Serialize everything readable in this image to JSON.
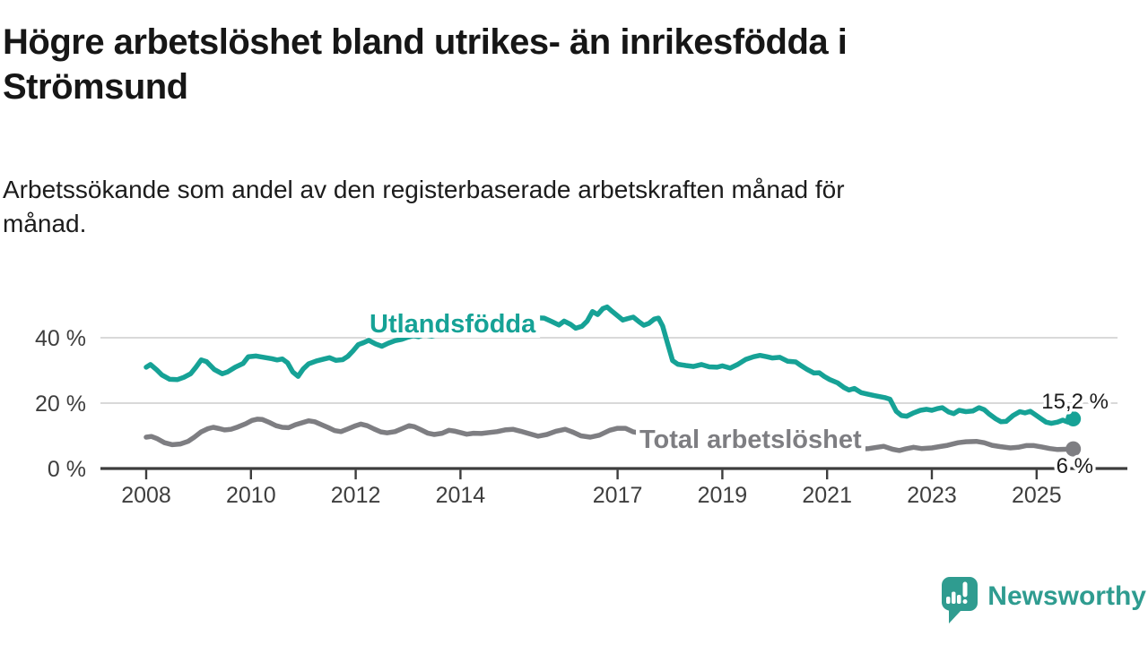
{
  "header": {
    "title": "Högre arbetslöshet bland utrikes- än inrikesfödda i\nStrömsund",
    "subtitle": "Arbetssökande som andel av den registerbaserade arbetskraften månad för\nmånad."
  },
  "footer": {
    "brand": "Newsworthy",
    "brand_color": "#2F9C90",
    "logo_icon": "newsworthy-speech-bubble-bar-chart-icon"
  },
  "colors": {
    "accent_teal": "#16A296",
    "series_gray": "#7E7E82",
    "gridline": "#D9D9D9",
    "axis": "#3D3D3D",
    "tick_text": "#3E3E3E",
    "value_text": "#1C1C1C",
    "background": "#FFFFFF"
  },
  "chart_data": {
    "type": "line",
    "title": "",
    "xlabel": "",
    "ylabel": "",
    "unit": "%",
    "ylim": [
      0,
      50
    ],
    "x_range": [
      2008,
      2025.7
    ],
    "grid": "horizontal",
    "legend_position": "inline-labels",
    "yticks": [
      {
        "value": 40,
        "label": "40 %"
      },
      {
        "value": 20,
        "label": "20 %"
      },
      {
        "value": 0,
        "label": "0 %"
      }
    ],
    "xticks": [
      {
        "year": 2008,
        "label": "2008"
      },
      {
        "year": 2010,
        "label": "2010"
      },
      {
        "year": 2012,
        "label": "2012"
      },
      {
        "year": 2014,
        "label": "2014"
      },
      {
        "year": 2017,
        "label": "2017"
      },
      {
        "year": 2019,
        "label": "2019"
      },
      {
        "year": 2021,
        "label": "2021"
      },
      {
        "year": 2023,
        "label": "2023"
      },
      {
        "year": 2025,
        "label": "2025"
      }
    ],
    "series": [
      {
        "name": "Utlandsfödda",
        "color": "#16A296",
        "end_value": 15.2,
        "end_label": "15,2 %",
        "points": [
          [
            2008.0,
            31.0
          ],
          [
            2008.08,
            31.8
          ],
          [
            2008.2,
            30.2
          ],
          [
            2008.3,
            28.6
          ],
          [
            2008.45,
            27.3
          ],
          [
            2008.6,
            27.2
          ],
          [
            2008.72,
            27.9
          ],
          [
            2008.85,
            29.0
          ],
          [
            2008.95,
            31.0
          ],
          [
            2009.05,
            33.2
          ],
          [
            2009.15,
            32.7
          ],
          [
            2009.3,
            30.3
          ],
          [
            2009.45,
            29.0
          ],
          [
            2009.55,
            29.5
          ],
          [
            2009.7,
            31.0
          ],
          [
            2009.85,
            32.1
          ],
          [
            2009.95,
            34.2
          ],
          [
            2010.1,
            34.4
          ],
          [
            2010.25,
            34.0
          ],
          [
            2010.4,
            33.6
          ],
          [
            2010.5,
            33.2
          ],
          [
            2010.6,
            33.5
          ],
          [
            2010.7,
            32.3
          ],
          [
            2010.8,
            29.5
          ],
          [
            2010.9,
            28.2
          ],
          [
            2011.0,
            30.5
          ],
          [
            2011.1,
            32.0
          ],
          [
            2011.25,
            32.9
          ],
          [
            2011.4,
            33.5
          ],
          [
            2011.5,
            33.9
          ],
          [
            2011.62,
            33.1
          ],
          [
            2011.75,
            33.3
          ],
          [
            2011.85,
            34.3
          ],
          [
            2011.95,
            36.0
          ],
          [
            2012.05,
            37.9
          ],
          [
            2012.15,
            38.5
          ],
          [
            2012.25,
            39.2
          ],
          [
            2012.38,
            38.1
          ],
          [
            2012.5,
            37.4
          ],
          [
            2012.62,
            38.3
          ],
          [
            2012.75,
            39.1
          ],
          [
            2012.88,
            39.5
          ],
          [
            2013.0,
            40.2
          ],
          [
            2013.1,
            40.6
          ],
          [
            2013.2,
            40.3
          ],
          [
            2013.3,
            40.9
          ],
          [
            2013.45,
            40.5
          ],
          [
            2013.6,
            41.1
          ],
          [
            2013.75,
            40.8
          ],
          [
            2013.9,
            41.2
          ],
          [
            2014.05,
            41.4
          ],
          [
            2014.2,
            41.1
          ],
          [
            2014.35,
            41.3
          ],
          [
            2014.5,
            41.7
          ],
          [
            2014.7,
            42.3
          ],
          [
            2014.9,
            43.1
          ],
          [
            2015.1,
            44.1
          ],
          [
            2015.3,
            45.3
          ],
          [
            2015.45,
            46.1
          ],
          [
            2015.6,
            46.0
          ],
          [
            2015.75,
            44.9
          ],
          [
            2015.88,
            43.9
          ],
          [
            2015.98,
            45.1
          ],
          [
            2016.1,
            44.1
          ],
          [
            2016.2,
            42.9
          ],
          [
            2016.32,
            43.5
          ],
          [
            2016.42,
            45.1
          ],
          [
            2016.52,
            48.0
          ],
          [
            2016.62,
            47.1
          ],
          [
            2016.72,
            48.9
          ],
          [
            2016.8,
            49.4
          ],
          [
            2016.9,
            48.0
          ],
          [
            2017.0,
            46.7
          ],
          [
            2017.1,
            45.4
          ],
          [
            2017.2,
            45.9
          ],
          [
            2017.3,
            46.3
          ],
          [
            2017.4,
            45.0
          ],
          [
            2017.5,
            43.8
          ],
          [
            2017.6,
            44.4
          ],
          [
            2017.7,
            45.7
          ],
          [
            2017.78,
            46.0
          ],
          [
            2017.86,
            43.6
          ],
          [
            2017.95,
            38.5
          ],
          [
            2018.05,
            33.0
          ],
          [
            2018.15,
            31.9
          ],
          [
            2018.3,
            31.5
          ],
          [
            2018.45,
            31.2
          ],
          [
            2018.6,
            31.8
          ],
          [
            2018.75,
            31.1
          ],
          [
            2018.9,
            31.0
          ],
          [
            2019.0,
            31.4
          ],
          [
            2019.15,
            30.7
          ],
          [
            2019.3,
            31.9
          ],
          [
            2019.45,
            33.4
          ],
          [
            2019.6,
            34.2
          ],
          [
            2019.72,
            34.6
          ],
          [
            2019.85,
            34.2
          ],
          [
            2019.95,
            33.8
          ],
          [
            2020.1,
            34.0
          ],
          [
            2020.25,
            32.8
          ],
          [
            2020.4,
            32.6
          ],
          [
            2020.5,
            31.5
          ],
          [
            2020.62,
            30.3
          ],
          [
            2020.75,
            29.2
          ],
          [
            2020.85,
            29.3
          ],
          [
            2020.95,
            28.1
          ],
          [
            2021.05,
            27.2
          ],
          [
            2021.2,
            26.2
          ],
          [
            2021.32,
            24.8
          ],
          [
            2021.42,
            24.0
          ],
          [
            2021.52,
            24.5
          ],
          [
            2021.65,
            23.2
          ],
          [
            2021.78,
            22.7
          ],
          [
            2021.9,
            22.3
          ],
          [
            2022.0,
            22.0
          ],
          [
            2022.1,
            21.7
          ],
          [
            2022.2,
            21.2
          ],
          [
            2022.32,
            17.5
          ],
          [
            2022.42,
            16.2
          ],
          [
            2022.52,
            16.0
          ],
          [
            2022.65,
            17.0
          ],
          [
            2022.78,
            17.8
          ],
          [
            2022.9,
            18.1
          ],
          [
            2023.0,
            17.8
          ],
          [
            2023.1,
            18.3
          ],
          [
            2023.2,
            18.6
          ],
          [
            2023.32,
            17.3
          ],
          [
            2023.42,
            16.8
          ],
          [
            2023.52,
            17.8
          ],
          [
            2023.65,
            17.4
          ],
          [
            2023.78,
            17.6
          ],
          [
            2023.9,
            18.6
          ],
          [
            2024.0,
            18.0
          ],
          [
            2024.1,
            16.6
          ],
          [
            2024.22,
            15.2
          ],
          [
            2024.32,
            14.3
          ],
          [
            2024.42,
            14.4
          ],
          [
            2024.55,
            16.2
          ],
          [
            2024.68,
            17.4
          ],
          [
            2024.78,
            17.0
          ],
          [
            2024.88,
            17.5
          ],
          [
            2024.98,
            16.4
          ],
          [
            2025.08,
            15.3
          ],
          [
            2025.18,
            14.2
          ],
          [
            2025.28,
            13.8
          ],
          [
            2025.4,
            14.2
          ],
          [
            2025.5,
            14.8
          ],
          [
            2025.6,
            14.2
          ],
          [
            2025.7,
            15.2
          ]
        ]
      },
      {
        "name": "Total arbetslöshet",
        "color": "#7E7E82",
        "end_value": 6.0,
        "end_label": "6 %",
        "points": [
          [
            2008.0,
            9.6
          ],
          [
            2008.1,
            9.8
          ],
          [
            2008.2,
            9.2
          ],
          [
            2008.35,
            7.9
          ],
          [
            2008.5,
            7.3
          ],
          [
            2008.65,
            7.5
          ],
          [
            2008.8,
            8.3
          ],
          [
            2008.92,
            9.6
          ],
          [
            2009.05,
            11.2
          ],
          [
            2009.18,
            12.2
          ],
          [
            2009.28,
            12.6
          ],
          [
            2009.4,
            12.2
          ],
          [
            2009.5,
            11.8
          ],
          [
            2009.62,
            12.0
          ],
          [
            2009.75,
            12.7
          ],
          [
            2009.9,
            13.7
          ],
          [
            2010.02,
            14.7
          ],
          [
            2010.12,
            15.1
          ],
          [
            2010.22,
            15.0
          ],
          [
            2010.35,
            14.1
          ],
          [
            2010.48,
            13.1
          ],
          [
            2010.6,
            12.6
          ],
          [
            2010.72,
            12.5
          ],
          [
            2010.85,
            13.4
          ],
          [
            2011.0,
            14.1
          ],
          [
            2011.1,
            14.6
          ],
          [
            2011.22,
            14.3
          ],
          [
            2011.35,
            13.4
          ],
          [
            2011.48,
            12.5
          ],
          [
            2011.6,
            11.6
          ],
          [
            2011.72,
            11.3
          ],
          [
            2011.85,
            12.1
          ],
          [
            2012.0,
            13.1
          ],
          [
            2012.1,
            13.6
          ],
          [
            2012.22,
            13.1
          ],
          [
            2012.35,
            12.1
          ],
          [
            2012.48,
            11.2
          ],
          [
            2012.6,
            10.9
          ],
          [
            2012.75,
            11.3
          ],
          [
            2012.9,
            12.3
          ],
          [
            2013.02,
            13.1
          ],
          [
            2013.12,
            12.8
          ],
          [
            2013.25,
            11.8
          ],
          [
            2013.38,
            10.8
          ],
          [
            2013.5,
            10.4
          ],
          [
            2013.65,
            10.8
          ],
          [
            2013.78,
            11.7
          ],
          [
            2013.9,
            11.4
          ],
          [
            2014.02,
            10.9
          ],
          [
            2014.12,
            10.5
          ],
          [
            2014.25,
            10.8
          ],
          [
            2014.4,
            10.7
          ],
          [
            2014.55,
            11.0
          ],
          [
            2014.7,
            11.3
          ],
          [
            2014.85,
            11.8
          ],
          [
            2015.0,
            12.0
          ],
          [
            2015.15,
            11.4
          ],
          [
            2015.3,
            10.7
          ],
          [
            2015.48,
            9.9
          ],
          [
            2015.65,
            10.4
          ],
          [
            2015.82,
            11.4
          ],
          [
            2016.0,
            12.0
          ],
          [
            2016.15,
            11.1
          ],
          [
            2016.3,
            10.0
          ],
          [
            2016.48,
            9.6
          ],
          [
            2016.65,
            10.2
          ],
          [
            2016.85,
            11.7
          ],
          [
            2017.0,
            12.3
          ],
          [
            2017.15,
            12.3
          ],
          [
            2017.3,
            11.2
          ],
          [
            2017.5,
            10.6
          ],
          [
            2017.75,
            10.2
          ],
          [
            2018.0,
            9.9
          ],
          [
            2018.25,
            9.5
          ],
          [
            2018.5,
            9.2
          ],
          [
            2018.75,
            9.0
          ],
          [
            2019.0,
            8.8
          ],
          [
            2019.25,
            8.6
          ],
          [
            2019.5,
            8.9
          ],
          [
            2019.75,
            9.2
          ],
          [
            2020.0,
            9.5
          ],
          [
            2020.25,
            9.3
          ],
          [
            2020.5,
            8.8
          ],
          [
            2020.75,
            7.9
          ],
          [
            2021.0,
            7.1
          ],
          [
            2021.2,
            6.5
          ],
          [
            2021.4,
            6.0
          ],
          [
            2021.6,
            5.9
          ],
          [
            2021.8,
            6.1
          ],
          [
            2021.95,
            6.5
          ],
          [
            2022.08,
            6.8
          ],
          [
            2022.25,
            5.9
          ],
          [
            2022.38,
            5.5
          ],
          [
            2022.5,
            6.0
          ],
          [
            2022.65,
            6.5
          ],
          [
            2022.8,
            6.1
          ],
          [
            2023.0,
            6.3
          ],
          [
            2023.15,
            6.7
          ],
          [
            2023.3,
            7.1
          ],
          [
            2023.5,
            7.9
          ],
          [
            2023.65,
            8.2
          ],
          [
            2023.85,
            8.3
          ],
          [
            2024.0,
            7.9
          ],
          [
            2024.15,
            7.1
          ],
          [
            2024.3,
            6.7
          ],
          [
            2024.5,
            6.3
          ],
          [
            2024.65,
            6.5
          ],
          [
            2024.8,
            7.0
          ],
          [
            2024.95,
            7.0
          ],
          [
            2025.1,
            6.6
          ],
          [
            2025.25,
            6.1
          ],
          [
            2025.4,
            5.8
          ],
          [
            2025.55,
            5.9
          ],
          [
            2025.7,
            6.0
          ]
        ]
      }
    ]
  }
}
